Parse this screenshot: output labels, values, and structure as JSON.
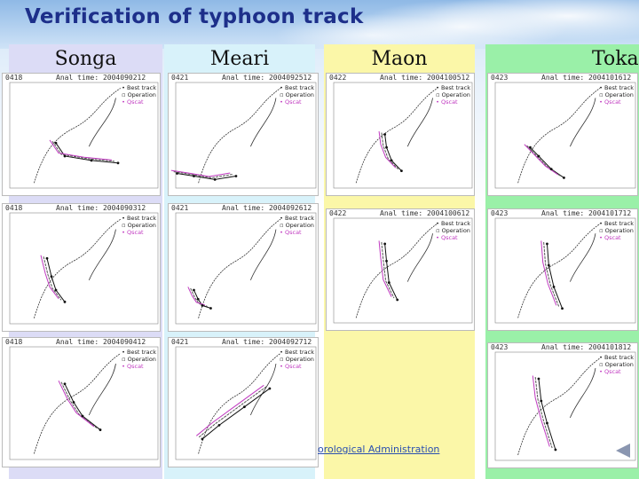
{
  "title": "Verification of typhoon track",
  "columns": [
    {
      "name": "Songa",
      "bg": "#dcdcf6"
    },
    {
      "name": "Meari",
      "bg": "#d8f2fa"
    },
    {
      "name": "Maon",
      "bg": "#fbf7a8"
    },
    {
      "name": "Toka",
      "bg": "#9af0a8"
    }
  ],
  "legend": {
    "best": "Best track",
    "oper": "Operation",
    "qscat": "Qscat"
  },
  "panels": [
    {
      "id": "0418",
      "time": "Anal time: 2004090212"
    },
    {
      "id": "0418",
      "time": "Anal time: 2004090312"
    },
    {
      "id": "0418",
      "time": "Anal time: 2004090412"
    },
    {
      "id": "0421",
      "time": "Anal time: 2004092512"
    },
    {
      "id": "0421",
      "time": "Anal time: 2004092612"
    },
    {
      "id": "0421",
      "time": "Anal time: 2004092712"
    },
    {
      "id": "0422",
      "time": "Anal time: 2004100512"
    },
    {
      "id": "0422",
      "time": "Anal time: 2004100612"
    },
    {
      "id": "0423",
      "time": "Anal time: 2004101612"
    },
    {
      "id": "0423",
      "time": "Anal time: 2004101712"
    },
    {
      "id": "0423",
      "time": "Anal time: 2004101812"
    }
  ],
  "footer": "orological Administration",
  "colors": {
    "qscat": "#c039c0",
    "track": "#111111",
    "title": "#1d2f8a"
  }
}
